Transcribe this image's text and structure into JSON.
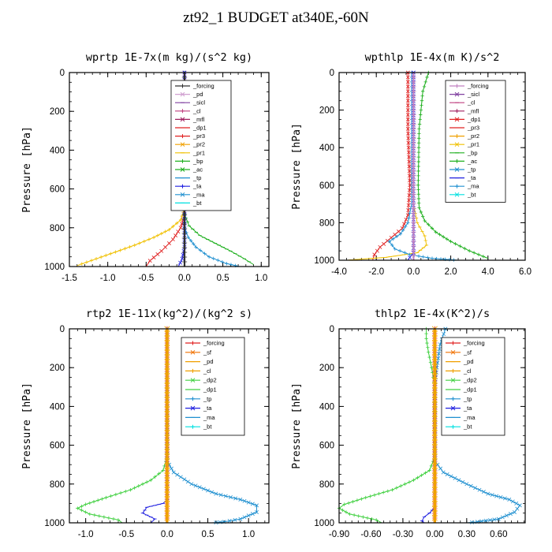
{
  "figure_title": "zt92_1  BUDGET at340E,-60N",
  "chart_data": [
    {
      "type": "line",
      "title": "wprtp  1E-7x(m kg)/(s^2 kg)",
      "ylabel": "Pressure [hPa]",
      "xlim": [
        -1.5,
        1.1
      ],
      "ylim": [
        1000,
        0
      ],
      "xticks": [
        "-1.5",
        "-1.0",
        "-0.5",
        "0.0",
        "0.5",
        "1.0"
      ],
      "xtick_values": [
        -1.5,
        -1.0,
        -0.5,
        0.0,
        0.5,
        1.0
      ],
      "yticks": [
        "0",
        "200",
        "400",
        "600",
        "800",
        "1000"
      ],
      "ytick_values": [
        0,
        200,
        400,
        600,
        800,
        1000
      ],
      "legend": [
        "_forcing",
        "_pd",
        "_sicl",
        "_cl",
        "_mfl",
        "_dp1",
        "_pr3",
        "_pr2",
        "_pr1",
        "_bp",
        "_ac",
        "_tp",
        "_ta",
        "_ma",
        "_bt"
      ],
      "series": [
        {
          "name": "_pr1",
          "color": "#f0c000",
          "points": [
            [
              0,
              0
            ],
            [
              0,
              700
            ],
            [
              -0.05,
              760
            ],
            [
              -0.2,
              810
            ],
            [
              -0.4,
              850
            ],
            [
              -0.65,
              890
            ],
            [
              -0.9,
              925
            ],
            [
              -1.15,
              960
            ],
            [
              -1.4,
              995
            ]
          ]
        },
        {
          "name": "_dp1",
          "color": "#e02020",
          "points": [
            [
              0,
              0
            ],
            [
              0,
              740
            ],
            [
              -0.05,
              800
            ],
            [
              -0.15,
              860
            ],
            [
              -0.3,
              920
            ],
            [
              -0.45,
              970
            ],
            [
              -0.5,
              1000
            ]
          ]
        },
        {
          "name": "_ac",
          "color": "#20b020",
          "points": [
            [
              0,
              0
            ],
            [
              0,
              730
            ],
            [
              0.06,
              790
            ],
            [
              0.2,
              840
            ],
            [
              0.4,
              880
            ],
            [
              0.6,
              920
            ],
            [
              0.78,
              960
            ],
            [
              0.9,
              990
            ]
          ]
        },
        {
          "name": "_tp",
          "color": "#2090d0",
          "points": [
            [
              0,
              0
            ],
            [
              0,
              800
            ],
            [
              0.05,
              850
            ],
            [
              0.15,
              900
            ],
            [
              0.32,
              950
            ],
            [
              0.55,
              985
            ],
            [
              0.72,
              1000
            ]
          ]
        },
        {
          "name": "_ta",
          "color": "#2020e0",
          "points": [
            [
              0,
              0
            ],
            [
              0,
              900
            ],
            [
              -0.03,
              960
            ],
            [
              -0.08,
              1000
            ]
          ]
        },
        {
          "name": "_forcing",
          "color": "#303030",
          "points": [
            [
              0,
              0
            ],
            [
              0,
              1000
            ]
          ]
        }
      ]
    },
    {
      "type": "line",
      "title": "wpthlp  1E-4x(m K)/s^2",
      "ylabel": "Pressure [hPa]",
      "xlim": [
        -4.0,
        6.0
      ],
      "ylim": [
        1000,
        0
      ],
      "xticks": [
        "-4.0",
        "-2.0",
        "0.0",
        "2.0",
        "4.0",
        "6.0"
      ],
      "xtick_values": [
        -4.0,
        -2.0,
        0.0,
        2.0,
        4.0,
        6.0
      ],
      "yticks": [
        "0",
        "200",
        "400",
        "600",
        "800",
        "1000"
      ],
      "ytick_values": [
        0,
        200,
        400,
        600,
        800,
        1000
      ],
      "legend": [
        "_forcing",
        "_sicl",
        "_cl",
        "_mfl",
        "_dp1",
        "_pr3",
        "_pr2",
        "_pr1",
        "_bp",
        "_ac",
        "_tp",
        "_ta",
        "_ma",
        "_bt"
      ],
      "series": [
        {
          "name": "_ac",
          "color": "#20b020",
          "points": [
            [
              0.8,
              0
            ],
            [
              0.5,
              100
            ],
            [
              0.3,
              300
            ],
            [
              0.25,
              600
            ],
            [
              0.3,
              720
            ],
            [
              0.6,
              790
            ],
            [
              1.2,
              850
            ],
            [
              2.0,
              900
            ],
            [
              3.0,
              950
            ],
            [
              4.0,
              990
            ]
          ]
        },
        {
          "name": "_dp1",
          "color": "#e02020",
          "points": [
            [
              -0.3,
              0
            ],
            [
              -0.3,
              300
            ],
            [
              -0.2,
              600
            ],
            [
              -0.3,
              760
            ],
            [
              -0.6,
              830
            ],
            [
              -1.2,
              880
            ],
            [
              -1.8,
              930
            ],
            [
              -2.1,
              970
            ],
            [
              -2.2,
              1000
            ]
          ]
        },
        {
          "name": "_pr1",
          "color": "#f0c000",
          "points": [
            [
              0,
              0
            ],
            [
              0,
              700
            ],
            [
              0.2,
              800
            ],
            [
              0.6,
              870
            ],
            [
              0.7,
              920
            ],
            [
              0.2,
              960
            ],
            [
              -1.5,
              985
            ],
            [
              -3.6,
              1000
            ]
          ]
        },
        {
          "name": "_tp",
          "color": "#2090d0",
          "points": [
            [
              -0.1,
              0
            ],
            [
              -0.1,
              700
            ],
            [
              -0.3,
              800
            ],
            [
              -0.7,
              860
            ],
            [
              -1.3,
              900
            ],
            [
              -1.0,
              940
            ],
            [
              -0.2,
              970
            ],
            [
              1.0,
              990
            ],
            [
              2.4,
              1000
            ]
          ]
        },
        {
          "name": "_ta",
          "color": "#2020e0",
          "points": [
            [
              0,
              0
            ],
            [
              0,
              960
            ],
            [
              -0.2,
              985
            ],
            [
              -0.3,
              1000
            ]
          ]
        },
        {
          "name": "_forcing",
          "color": "#c080c0",
          "points": [
            [
              0,
              0
            ],
            [
              0,
              1000
            ]
          ]
        }
      ]
    },
    {
      "type": "line",
      "title": "rtp2  1E-11x(kg^2)/(kg^2 s)",
      "ylabel": "Pressure [hPa]",
      "xlim": [
        -1.2,
        1.25
      ],
      "ylim": [
        1000,
        0
      ],
      "xticks": [
        "-1.0",
        "-0.5",
        "0.0",
        "0.5",
        "1.0"
      ],
      "xtick_values": [
        -1.0,
        -0.5,
        0.0,
        0.5,
        1.0
      ],
      "yticks": [
        "0",
        "200",
        "400",
        "600",
        "800",
        "1000"
      ],
      "ytick_values": [
        0,
        200,
        400,
        600,
        800,
        1000
      ],
      "legend": [
        "_forcing",
        "_sf",
        "_pd",
        "_cl",
        "_dp2",
        "_dp1",
        "_tp",
        "_ta",
        "_ma",
        "_bt"
      ],
      "series": [
        {
          "name": "_dp1",
          "color": "#40d040",
          "points": [
            [
              0,
              0
            ],
            [
              0,
              660
            ],
            [
              -0.05,
              730
            ],
            [
              -0.2,
              780
            ],
            [
              -0.45,
              830
            ],
            [
              -0.75,
              870
            ],
            [
              -1.0,
              905
            ],
            [
              -1.1,
              925
            ],
            [
              -0.95,
              955
            ],
            [
              -0.6,
              985
            ],
            [
              -0.55,
              1000
            ]
          ]
        },
        {
          "name": "_tp",
          "color": "#2090d0",
          "points": [
            [
              0,
              0
            ],
            [
              0,
              680
            ],
            [
              0.08,
              740
            ],
            [
              0.3,
              800
            ],
            [
              0.6,
              850
            ],
            [
              0.9,
              880
            ],
            [
              1.1,
              910
            ],
            [
              1.1,
              945
            ],
            [
              0.9,
              980
            ],
            [
              0.7,
              995
            ],
            [
              0.55,
              1000
            ]
          ]
        },
        {
          "name": "_ta",
          "color": "#2020e0",
          "points": [
            [
              0,
              0
            ],
            [
              0,
              880
            ],
            [
              -0.05,
              900
            ],
            [
              -0.25,
              920
            ],
            [
              -0.3,
              950
            ],
            [
              -0.15,
              980
            ],
            [
              -0.2,
              1000
            ]
          ]
        },
        {
          "name": "_forcing",
          "color": "#e02020",
          "points": [
            [
              0,
              0
            ],
            [
              0,
              1000
            ]
          ]
        },
        {
          "name": "_cl",
          "color": "#f0a000",
          "points": [
            [
              0,
              0
            ],
            [
              0,
              1000
            ]
          ]
        }
      ]
    },
    {
      "type": "line",
      "title": "thlp2  1E-4x(K^2)/s",
      "ylabel": "Pressure [hPa]",
      "xlim": [
        -0.9,
        0.85
      ],
      "ylim": [
        1000,
        0
      ],
      "xticks": [
        "-0.90",
        "-0.60",
        "-0.30",
        "0.00",
        "0.30",
        "0.60"
      ],
      "xtick_values": [
        -0.9,
        -0.6,
        -0.3,
        0.0,
        0.3,
        0.6
      ],
      "yticks": [
        "0",
        "200",
        "400",
        "600",
        "800",
        "1000"
      ],
      "ytick_values": [
        0,
        200,
        400,
        600,
        800,
        1000
      ],
      "legend": [
        "_forcing",
        "_sf",
        "_pd",
        "_cl",
        "_dp2",
        "_dp1",
        "_tp",
        "_ta",
        "_ma",
        "_bt"
      ],
      "series": [
        {
          "name": "_dp1",
          "color": "#40d040",
          "points": [
            [
              -0.08,
              0
            ],
            [
              -0.08,
              50
            ],
            [
              -0.06,
              120
            ],
            [
              -0.03,
              200
            ],
            [
              0,
              300
            ],
            [
              0,
              660
            ],
            [
              -0.05,
              730
            ],
            [
              -0.2,
              780
            ],
            [
              -0.4,
              830
            ],
            [
              -0.65,
              870
            ],
            [
              -0.85,
              905
            ],
            [
              -0.9,
              925
            ],
            [
              -0.8,
              955
            ],
            [
              -0.55,
              985
            ],
            [
              -0.5,
              1000
            ]
          ]
        },
        {
          "name": "_tp",
          "color": "#2090d0",
          "points": [
            [
              0.1,
              0
            ],
            [
              0.05,
              80
            ],
            [
              0.02,
              200
            ],
            [
              0,
              300
            ],
            [
              0,
              680
            ],
            [
              0.08,
              740
            ],
            [
              0.3,
              800
            ],
            [
              0.5,
              850
            ],
            [
              0.7,
              880
            ],
            [
              0.8,
              910
            ],
            [
              0.75,
              945
            ],
            [
              0.6,
              980
            ],
            [
              0.4,
              995
            ],
            [
              0.3,
              1000
            ]
          ]
        },
        {
          "name": "_ta",
          "color": "#2020e0",
          "points": [
            [
              0,
              0
            ],
            [
              0,
              920
            ],
            [
              -0.05,
              950
            ],
            [
              -0.1,
              970
            ],
            [
              -0.12,
              990
            ],
            [
              -0.1,
              1000
            ]
          ]
        },
        {
          "name": "_forcing",
          "color": "#e02020",
          "points": [
            [
              0,
              0
            ],
            [
              0,
              1000
            ]
          ]
        },
        {
          "name": "_cl",
          "color": "#f0a000",
          "points": [
            [
              0,
              0
            ],
            [
              0,
              1000
            ]
          ]
        }
      ]
    }
  ],
  "legend_colors": {
    "_forcing": "#c080c0",
    "_pd": "#d0a0d0",
    "_sicl": "#8040a0",
    "_cl": "#c04080",
    "_mfl": "#a02060",
    "_dp1": "#e02020",
    "_pr3": "#e02020",
    "_pr2": "#f0a000",
    "_pr1": "#f0c000",
    "_bp": "#20b020",
    "_ac": "#20b020",
    "_tp": "#2090d0",
    "_ta": "#2020e0",
    "_ma": "#2090d0",
    "_bt": "#00e0e0",
    "_sf": "#f07000",
    "_dp2": "#40d040"
  },
  "legend_colors_panel1": {
    "_forcing": "#303030"
  },
  "legend_colors_panel3": {
    "_forcing": "#e02020",
    "_dp1": "#40d040",
    "_cl": "#f0a000",
    "_pd": "#f0a000"
  }
}
